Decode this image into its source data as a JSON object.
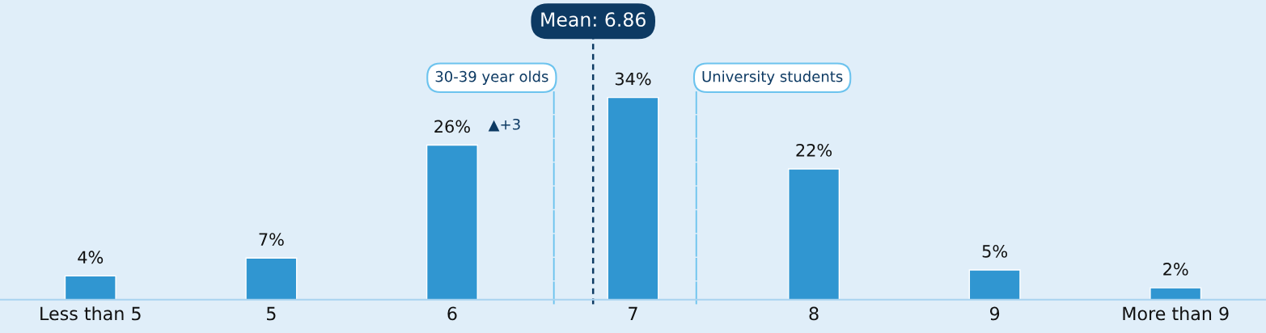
{
  "chart_data": {
    "type": "bar",
    "categories": [
      "Less than 5",
      "5",
      "6",
      "7",
      "8",
      "9",
      "More than 9"
    ],
    "values": [
      4,
      7,
      26,
      34,
      22,
      5,
      2
    ],
    "value_labels": [
      "4%",
      "7%",
      "26%",
      "34%",
      "22%",
      "5%",
      "2%"
    ],
    "color": "#3096d1",
    "tick_labels": "x",
    "grid": false,
    "annotations": [
      {
        "text": "▲+3",
        "x": "6",
        "y": 26
      },
      "Mean: 6.86",
      "30-39 year olds",
      "University students"
    ]
  }
}
